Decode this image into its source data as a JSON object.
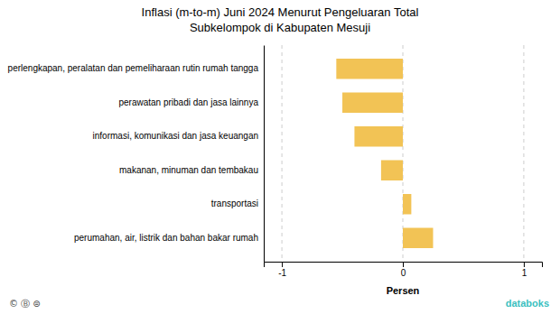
{
  "chart_data": {
    "type": "bar",
    "orientation": "horizontal",
    "title": "Inflasi (m-to-m) Juni 2024 Menurut Pengeluaran Total\nSubkelompok di Kabupaten Mesuji",
    "categories": [
      "perumahan, air, listrik dan bahan bakar rumah",
      "transportasi",
      "makanan, minuman dan tembakau",
      "informasi, komunikasi dan jasa keuangan",
      "perawatan pribadi dan jasa lainnya",
      "perlengkapan, peralatan dan pemeliharaan rutin rumah tangga"
    ],
    "values": [
      0.25,
      0.07,
      -0.18,
      -0.4,
      -0.5,
      -0.55
    ],
    "color": "#F2C355",
    "xlabel": "Persen",
    "xlim": [
      -1.15,
      1.15
    ],
    "xticks": [
      -1,
      0,
      1
    ],
    "grid": true,
    "annotations": [
      {
        "text": "databoks",
        "color": "#3BBFBF"
      },
      {
        "text": "© Ⓑ ⊜",
        "color": "#444444"
      }
    ]
  }
}
